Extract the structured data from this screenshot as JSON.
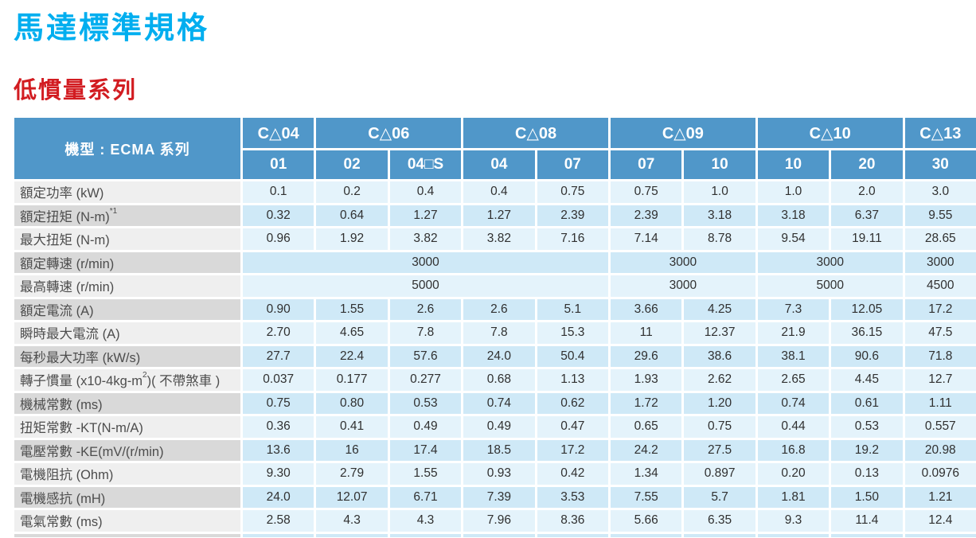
{
  "page": {
    "title": "馬達標準規格",
    "subtitle": "低慣量系列",
    "title_color": "#00aeef",
    "subtitle_color": "#d21c21"
  },
  "table": {
    "header_bg": "#5097c9",
    "row_label_bg_light": "#efefef",
    "row_label_bg_dark": "#d9d9d9",
    "value_bg_light": "#e4f3fb",
    "value_bg_dark": "#cfe9f7",
    "model_label": "機型 : ECMA 系列",
    "groups": [
      {
        "label": "C△04",
        "span": 1
      },
      {
        "label": "C△06",
        "span": 2
      },
      {
        "label": "C△08",
        "span": 2
      },
      {
        "label": "C△09",
        "span": 2
      },
      {
        "label": "C△10",
        "span": 2
      },
      {
        "label": "C△13",
        "span": 1
      }
    ],
    "sub_headers": [
      "01",
      "02",
      "04□S",
      "04",
      "07",
      "07",
      "10",
      "10",
      "20",
      "30"
    ],
    "rows": [
      {
        "label": "額定功率 (kW)",
        "cells": [
          "0.1",
          "0.2",
          "0.4",
          "0.4",
          "0.75",
          "0.75",
          "1.0",
          "1.0",
          "2.0",
          "3.0"
        ]
      },
      {
        "label": "額定扭矩 (N-m)",
        "sup": "*1",
        "cells": [
          "0.32",
          "0.64",
          "1.27",
          "1.27",
          "2.39",
          "2.39",
          "3.18",
          "3.18",
          "6.37",
          "9.55"
        ]
      },
      {
        "label": "最大扭矩 (N-m)",
        "cells": [
          "0.96",
          "1.92",
          "3.82",
          "3.82",
          "7.16",
          "7.14",
          "8.78",
          "9.54",
          "19.11",
          "28.65"
        ]
      },
      {
        "label": "額定轉速 (r/min)",
        "cells": [
          {
            "t": "3000",
            "span": 5
          },
          {
            "t": "3000",
            "span": 2
          },
          {
            "t": "3000",
            "span": 2
          },
          {
            "t": "3000",
            "span": 1
          }
        ]
      },
      {
        "label": "最高轉速 (r/min)",
        "cells": [
          {
            "t": "5000",
            "span": 5
          },
          {
            "t": "3000",
            "span": 2
          },
          {
            "t": "5000",
            "span": 2
          },
          {
            "t": "4500",
            "span": 1
          }
        ]
      },
      {
        "label": "額定電流 (A)",
        "cells": [
          "0.90",
          "1.55",
          "2.6",
          "2.6",
          "5.1",
          "3.66",
          "4.25",
          "7.3",
          "12.05",
          "17.2"
        ]
      },
      {
        "label": "瞬時最大電流 (A)",
        "cells": [
          "2.70",
          "4.65",
          "7.8",
          "7.8",
          "15.3",
          "11",
          "12.37",
          "21.9",
          "36.15",
          "47.5"
        ]
      },
      {
        "label": "每秒最大功率 (kW/s)",
        "cells": [
          "27.7",
          "22.4",
          "57.6",
          "24.0",
          "50.4",
          "29.6",
          "38.6",
          "38.1",
          "90.6",
          "71.8"
        ]
      },
      {
        "label": "轉子慣量 (x10-4kg-m",
        "sup": "2",
        "label_after": ")( 不帶煞車 )",
        "cells": [
          "0.037",
          "0.177",
          "0.277",
          "0.68",
          "1.13",
          "1.93",
          "2.62",
          "2.65",
          "4.45",
          "12.7"
        ]
      },
      {
        "label": "機械常數 (ms)",
        "cells": [
          "0.75",
          "0.80",
          "0.53",
          "0.74",
          "0.62",
          "1.72",
          "1.20",
          "0.74",
          "0.61",
          "1.11"
        ]
      },
      {
        "label": "扭矩常數 -KT(N-m/A)",
        "cells": [
          "0.36",
          "0.41",
          "0.49",
          "0.49",
          "0.47",
          "0.65",
          "0.75",
          "0.44",
          "0.53",
          "0.557"
        ]
      },
      {
        "label": "電壓常數 -KE(mV/(r/min)",
        "cells": [
          "13.6",
          "16",
          "17.4",
          "18.5",
          "17.2",
          "24.2",
          "27.5",
          "16.8",
          "19.2",
          "20.98"
        ]
      },
      {
        "label": "電機阻抗 (Ohm)",
        "cells": [
          "9.30",
          "2.79",
          "1.55",
          "0.93",
          "0.42",
          "1.34",
          "0.897",
          "0.20",
          "0.13",
          "0.0976"
        ]
      },
      {
        "label": "電機感抗 (mH)",
        "cells": [
          "24.0",
          "12.07",
          "6.71",
          "7.39",
          "3.53",
          "7.55",
          "5.7",
          "1.81",
          "1.50",
          "1.21"
        ]
      },
      {
        "label": "電氣常數 (ms)",
        "cells": [
          "2.58",
          "4.3",
          "4.3",
          "7.96",
          "8.36",
          "5.66",
          "6.35",
          "9.3",
          "11.4",
          "12.4"
        ]
      }
    ]
  }
}
